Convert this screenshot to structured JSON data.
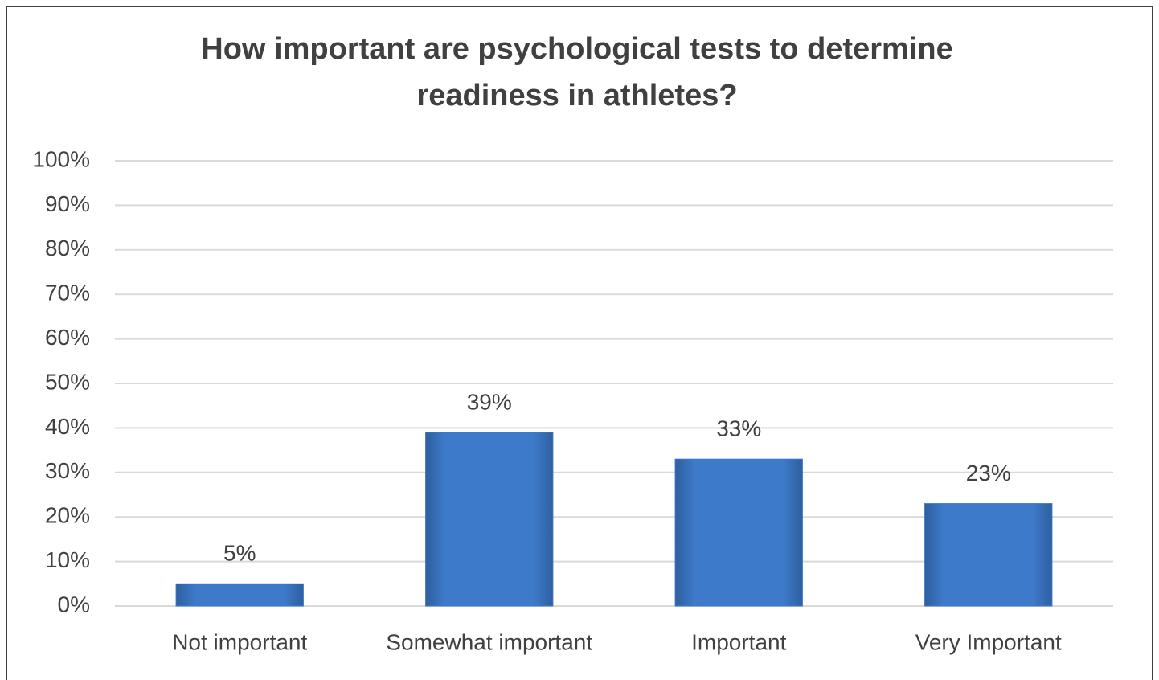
{
  "chart_data": {
    "type": "bar",
    "title": [
      "How important are psychological tests to determine",
      "readiness in athletes?"
    ],
    "categories": [
      "Not important",
      "Somewhat important",
      "Important",
      "Very Important"
    ],
    "values": [
      5,
      39,
      33,
      23
    ],
    "value_labels": [
      "5%",
      "39%",
      "33%",
      "23%"
    ],
    "color": "#3d7ac9",
    "ylim": [
      0,
      100
    ],
    "yticks": [
      {
        "value": 0,
        "label": "0%"
      },
      {
        "value": 10,
        "label": "10%"
      },
      {
        "value": 20,
        "label": "20%"
      },
      {
        "value": 30,
        "label": "30%"
      },
      {
        "value": 40,
        "label": "40%"
      },
      {
        "value": 50,
        "label": "50%"
      },
      {
        "value": 60,
        "label": "60%"
      },
      {
        "value": 70,
        "label": "70%"
      },
      {
        "value": 80,
        "label": "80%"
      },
      {
        "value": 90,
        "label": "90%"
      },
      {
        "value": 100,
        "label": "100%"
      }
    ],
    "grid": true
  }
}
